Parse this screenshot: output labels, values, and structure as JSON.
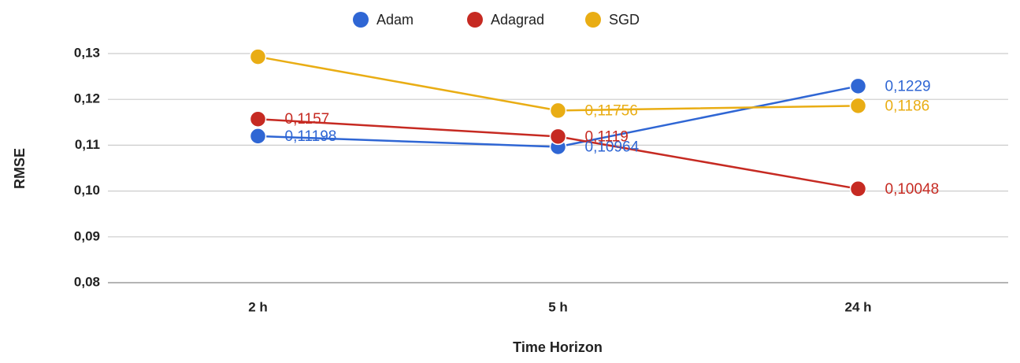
{
  "chart_data": {
    "type": "line",
    "x_label": "Time Horizon",
    "y_label": "RMSE",
    "categories": [
      "2 h",
      "5 h",
      "24 h"
    ],
    "series": [
      {
        "name": "Adam",
        "color": "#2f66d4",
        "values": [
          0.11198,
          0.10964,
          0.1229
        ],
        "value_labels": [
          "0,11198",
          "0,10964",
          "0,1229"
        ]
      },
      {
        "name": "Adagrad",
        "color": "#c62a22",
        "values": [
          0.1157,
          0.1119,
          0.10048
        ],
        "value_labels": [
          "0,1157",
          "0,1119",
          "0,10048"
        ]
      },
      {
        "name": "SGD",
        "color": "#e9ad14",
        "values": [
          0.1293,
          0.11756,
          0.1186
        ],
        "value_labels": [
          null,
          "0,11756",
          "0,1186"
        ]
      }
    ],
    "ylim": [
      0.08,
      0.13
    ],
    "yticks": [
      {
        "value": 0.08,
        "label": "0,08"
      },
      {
        "value": 0.09,
        "label": "0,09"
      },
      {
        "value": 0.1,
        "label": "0,10"
      },
      {
        "value": 0.11,
        "label": "0,11"
      },
      {
        "value": 0.12,
        "label": "0,12"
      },
      {
        "value": 0.13,
        "label": "0,13"
      }
    ],
    "grid": true,
    "legend": "top"
  }
}
